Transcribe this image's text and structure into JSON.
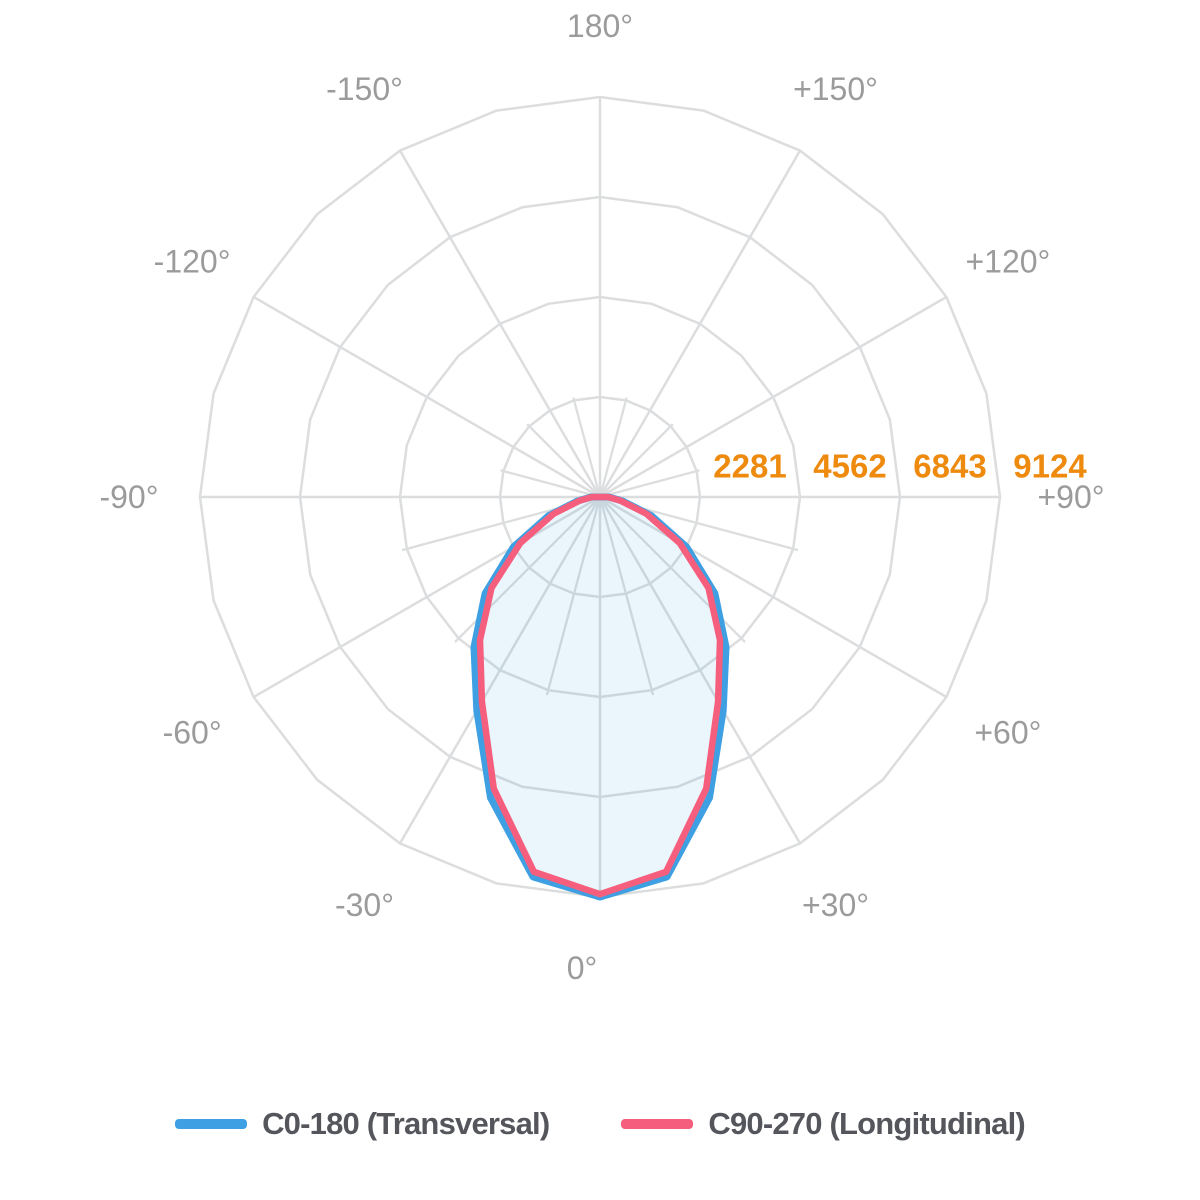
{
  "chart_data": {
    "type": "polar",
    "angle_ticks": [
      {
        "angle": 0,
        "label": "0°"
      },
      {
        "angle": 30,
        "label": "+30°"
      },
      {
        "angle": 60,
        "label": "+60°"
      },
      {
        "angle": 90,
        "label": "+90°"
      },
      {
        "angle": 120,
        "label": "+120°"
      },
      {
        "angle": 150,
        "label": "+150°"
      },
      {
        "angle": 180,
        "label": "180°"
      },
      {
        "angle": -30,
        "label": "-30°"
      },
      {
        "angle": -60,
        "label": "-60°"
      },
      {
        "angle": -90,
        "label": "-90°"
      },
      {
        "angle": -120,
        "label": "-120°"
      },
      {
        "angle": -150,
        "label": "-150°"
      }
    ],
    "radial_ticks": [
      2281,
      4562,
      6843,
      9124
    ],
    "r_max": 9124,
    "grid": {
      "ring_count": 4,
      "major_spoke_step_deg": 30,
      "minor_spoke_step_deg": 15
    },
    "series": [
      {
        "name": "C0-180 (Transversal)",
        "color": "#3EA0E2",
        "fill": "rgba(62,160,226,0.11)",
        "angles_deg": [
          -90,
          -80,
          -70,
          -60,
          -50,
          -40,
          -30,
          -20,
          -10,
          0,
          10,
          20,
          30,
          40,
          50,
          60,
          70,
          80,
          90
        ],
        "values": [
          200,
          520,
          1250,
          2280,
          3420,
          4470,
          5620,
          7300,
          8800,
          9124,
          8800,
          7300,
          5620,
          4470,
          3420,
          2280,
          1250,
          520,
          200
        ]
      },
      {
        "name": "C90-270 (Longitudinal)",
        "color": "#F55F7D",
        "fill": "none",
        "angles_deg": [
          -90,
          -80,
          -70,
          -60,
          -50,
          -40,
          -30,
          -20,
          -10,
          0,
          10,
          20,
          30,
          40,
          50,
          60,
          70,
          80,
          90
        ],
        "values": [
          180,
          470,
          1130,
          2100,
          3230,
          4260,
          5390,
          7080,
          8680,
          9060,
          8680,
          7080,
          5390,
          4260,
          3230,
          2100,
          1130,
          470,
          180
        ]
      }
    ],
    "colors": {
      "grid": "#DCDDDE",
      "angle_labels": "#9B9B9C",
      "radial_labels": "#EE8A0E",
      "legend_text": "#54565B",
      "background": "#FFFFFF"
    }
  },
  "legend": {
    "items": [
      {
        "label": "C0-180 (Transversal)",
        "color": "#3EA0E2"
      },
      {
        "label": "C90-270 (Longitudinal)",
        "color": "#F55F7D"
      }
    ]
  }
}
